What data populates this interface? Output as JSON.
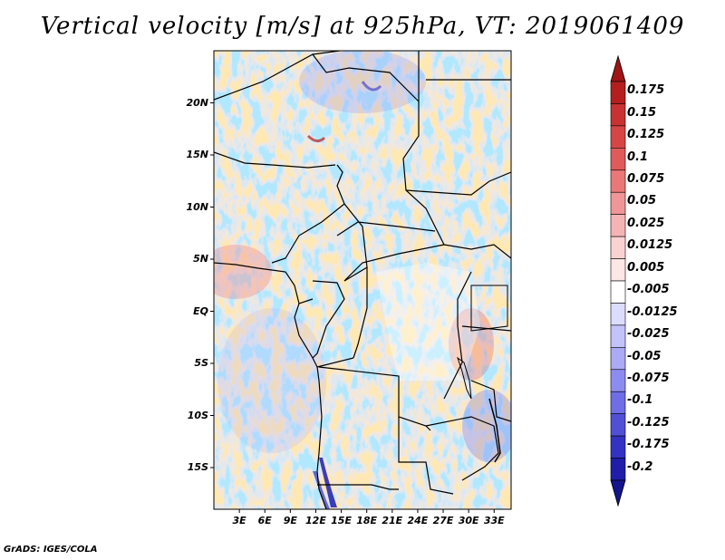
{
  "title": "Vertical velocity [m/s] at 925hPa, VT: 2019061409",
  "credit": "GrADS: IGES/COLA",
  "map": {
    "variable": "Vertical velocity",
    "units": "m/s",
    "level": "925hPa",
    "valid_time": "2019061409",
    "lat_range": [
      -19,
      25
    ],
    "lon_range": [
      0,
      35
    ],
    "lat_ticks": [
      {
        "value": 20,
        "label": "20N"
      },
      {
        "value": 15,
        "label": "15N"
      },
      {
        "value": 10,
        "label": "10N"
      },
      {
        "value": 5,
        "label": "5N"
      },
      {
        "value": 0,
        "label": "EQ"
      },
      {
        "value": -5,
        "label": "5S"
      },
      {
        "value": -10,
        "label": "10S"
      },
      {
        "value": -15,
        "label": "15S"
      }
    ],
    "lon_ticks": [
      {
        "value": 3,
        "label": "3E"
      },
      {
        "value": 6,
        "label": "6E"
      },
      {
        "value": 9,
        "label": "9E"
      },
      {
        "value": 12,
        "label": "12E"
      },
      {
        "value": 15,
        "label": "15E"
      },
      {
        "value": 18,
        "label": "18E"
      },
      {
        "value": 21,
        "label": "21E"
      },
      {
        "value": 24,
        "label": "24E"
      },
      {
        "value": 27,
        "label": "27E"
      },
      {
        "value": 30,
        "label": "30E"
      },
      {
        "value": 33,
        "label": "33E"
      }
    ]
  },
  "colorbar": {
    "levels": [
      {
        "label": "0.175",
        "color": "#b41e1e"
      },
      {
        "label": "0.15",
        "color": "#c83232"
      },
      {
        "label": "0.125",
        "color": "#d74646"
      },
      {
        "label": "0.1",
        "color": "#e15a5a"
      },
      {
        "label": "0.075",
        "color": "#eb7878"
      },
      {
        "label": "0.05",
        "color": "#f09696"
      },
      {
        "label": "0.025",
        "color": "#f5b4b4"
      },
      {
        "label": "0.0125",
        "color": "#fad2d2"
      },
      {
        "label": "0.005",
        "color": "#fde6e6"
      },
      {
        "label": "-0.005",
        "color": "#ffffff"
      },
      {
        "label": "-0.0125",
        "color": "#dcdcff"
      },
      {
        "label": "-0.025",
        "color": "#c3c3fa"
      },
      {
        "label": "-0.05",
        "color": "#aaaaf5"
      },
      {
        "label": "-0.075",
        "color": "#8c8cf0"
      },
      {
        "label": "-0.1",
        "color": "#6e6ee6"
      },
      {
        "label": "-0.125",
        "color": "#5050d7"
      },
      {
        "label": "-0.175",
        "color": "#3232c3"
      },
      {
        "label": "-0.2",
        "color": "#1e1eaa"
      }
    ],
    "over_color": "#a01414",
    "under_color": "#14148c"
  }
}
